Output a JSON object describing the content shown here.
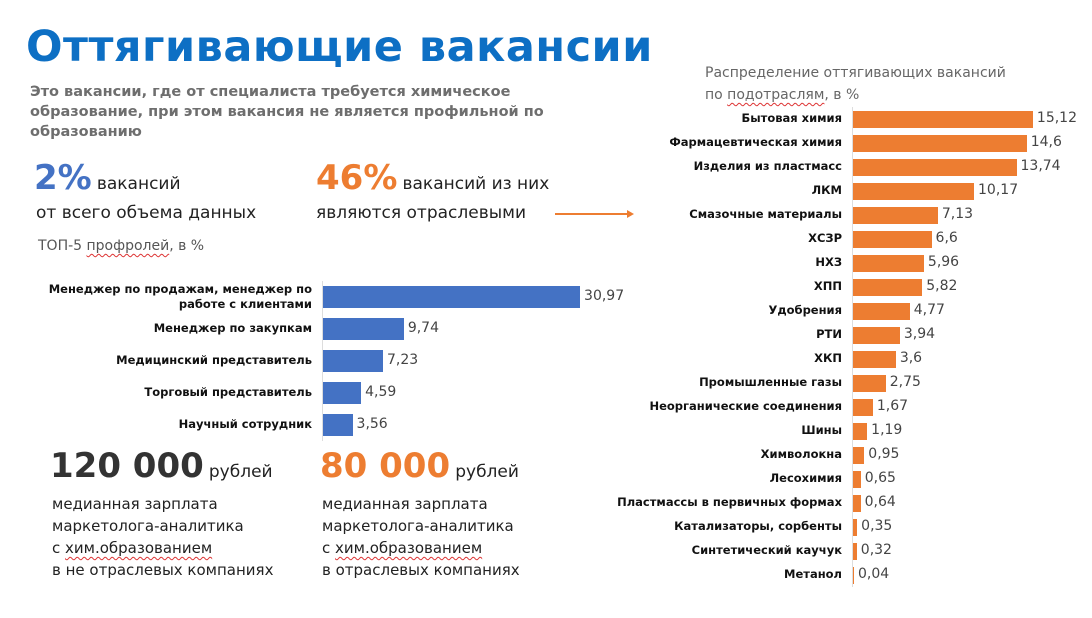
{
  "header": {
    "title": "Оттягивающие вакансии",
    "subtitle": "Это вакансии, где от специалиста требуется химическое образование, при этом вакансия не является профильной по образованию"
  },
  "stats": {
    "share_value": "2%",
    "share_text_1": "вакансий",
    "share_text_2": "от всего объема данных",
    "industry_value": "46%",
    "industry_text_1": "вакансий из них",
    "industry_text_2": "являются отраслевыми"
  },
  "salaries": [
    {
      "value": "120 000",
      "unit": "рублей",
      "line1": "медианная зарплата",
      "line2": "маркетолога-аналитика",
      "line3_pre": "с ",
      "line3_u": "хим.образованием",
      "line4": "в не отраслевых компаниях"
    },
    {
      "value": "80 000",
      "unit": "рублей",
      "line1": "медианная зарплата",
      "line2": "маркетолога-аналитика",
      "line3_pre": "с ",
      "line3_u": "хим.образованием",
      "line4": "в отраслевых компаниях"
    }
  ],
  "colors": {
    "blue": "#4472c4",
    "orange": "#ed7d31",
    "title": "#0d6fc4"
  },
  "chart_data": [
    {
      "type": "bar",
      "orientation": "horizontal",
      "title_pre": "ТОП-5 ",
      "title_u": "профролей",
      ", в %": "",
      "title_post": ", в %",
      "categories": [
        "Менеджер по продажам, менеджер по работе с клиентами",
        "Менеджер по закупкам",
        "Медицинский представитель",
        "Торговый представитель",
        "Научный сотрудник"
      ],
      "values": [
        30.97,
        9.74,
        7.23,
        4.59,
        3.56
      ],
      "labels": [
        "30,97",
        "9,74",
        "7,23",
        "4,59",
        "3,56"
      ],
      "color": "#4472c4",
      "xlim": [
        0,
        31
      ]
    },
    {
      "type": "bar",
      "orientation": "horizontal",
      "title_1": "Распределение оттягивающих вакансий",
      "title_pre": "по ",
      "title_u": "подотраслям",
      "title_post": ", в %",
      "categories": [
        "Бытовая химия",
        "Фармацевтическая химия",
        "Изделия из пластмасс",
        "ЛКМ",
        "Смазочные материалы",
        "ХСЗР",
        "НХЗ",
        "ХПП",
        "Удобрения",
        "РТИ",
        "ХКП",
        "Промышленные газы",
        "Неорганические соединения",
        "Шины",
        "Химволокна",
        "Лесохимия",
        "Пластмассы в первичных формах",
        "Катализаторы, сорбенты",
        "Синтетический каучук",
        "Метанол"
      ],
      "values": [
        15.12,
        14.6,
        13.74,
        10.17,
        7.13,
        6.6,
        5.96,
        5.82,
        4.77,
        3.94,
        3.6,
        2.75,
        1.67,
        1.19,
        0.95,
        0.65,
        0.64,
        0.35,
        0.32,
        0.04
      ],
      "labels": [
        "15,12",
        "14,6",
        "13,74",
        "10,17",
        "7,13",
        "6,6",
        "5,96",
        "5,82",
        "4,77",
        "3,94",
        "3,6",
        "2,75",
        "1,67",
        "1,19",
        "0,95",
        "0,65",
        "0,64",
        "0,35",
        "0,32",
        "0,04"
      ],
      "color": "#ed7d31",
      "xlim": [
        0,
        15.12
      ]
    }
  ]
}
